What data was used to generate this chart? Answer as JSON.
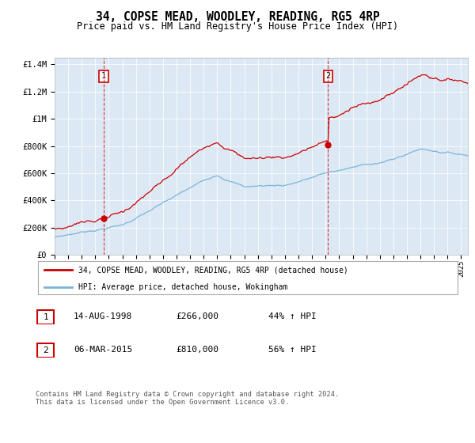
{
  "title": "34, COPSE MEAD, WOODLEY, READING, RG5 4RP",
  "subtitle": "Price paid vs. HM Land Registry's House Price Index (HPI)",
  "background_color": "#dce9f5",
  "red_line_color": "#cc0000",
  "blue_line_color": "#7ab4d8",
  "sale1_date_num": 1998.617,
  "sale1_price": 266000,
  "sale2_date_num": 2015.178,
  "sale2_price": 810000,
  "ylim": [
    0,
    1450000
  ],
  "xlim_start": 1995.0,
  "xlim_end": 2025.5,
  "legend_line1": "34, COPSE MEAD, WOODLEY, READING, RG5 4RP (detached house)",
  "legend_line2": "HPI: Average price, detached house, Wokingham",
  "annotation1_label": "1",
  "annotation1_date": "14-AUG-1998",
  "annotation1_price": "£266,000",
  "annotation1_hpi": "44% ↑ HPI",
  "annotation2_label": "2",
  "annotation2_date": "06-MAR-2015",
  "annotation2_price": "£810,000",
  "annotation2_hpi": "56% ↑ HPI",
  "footer": "Contains HM Land Registry data © Crown copyright and database right 2024.\nThis data is licensed under the Open Government Licence v3.0.",
  "ytick_labels": [
    "£0",
    "£200K",
    "£400K",
    "£600K",
    "£800K",
    "£1M",
    "£1.2M",
    "£1.4M"
  ],
  "ytick_values": [
    0,
    200000,
    400000,
    600000,
    800000,
    1000000,
    1200000,
    1400000
  ]
}
